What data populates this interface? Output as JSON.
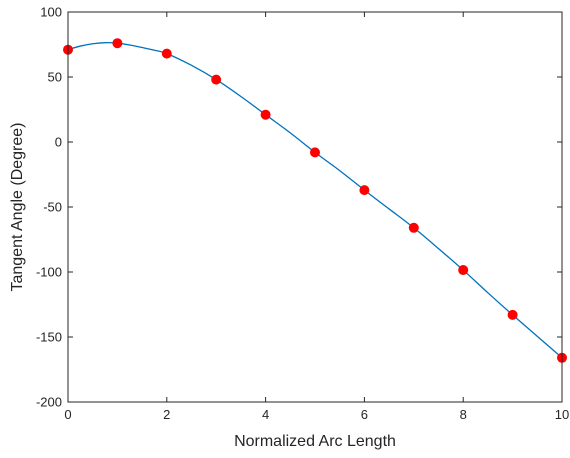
{
  "chart_data": {
    "type": "line",
    "title": "",
    "xlabel": "Normalized Arc Length",
    "ylabel": "Tangent Angle (Degree)",
    "xlim": [
      0,
      10
    ],
    "ylim": [
      -200,
      100
    ],
    "xticks": [
      0,
      2,
      4,
      6,
      8,
      10
    ],
    "yticks": [
      100,
      50,
      0,
      -50,
      -100,
      -150,
      -200
    ],
    "grid": false,
    "legend": "none",
    "series": [
      {
        "kind": "line",
        "color": "#0072BD",
        "x": [
          0,
          0.25,
          0.5,
          0.75,
          1,
          1.25,
          1.5,
          1.75,
          2,
          2.5,
          3,
          3.5,
          4,
          4.5,
          5,
          5.5,
          6,
          6.5,
          7,
          7.5,
          8,
          8.5,
          9,
          9.5,
          10
        ],
        "y": [
          71,
          73.8,
          75.6,
          76.4,
          76,
          74.6,
          72.7,
          70.6,
          68,
          59,
          48,
          35,
          21,
          7,
          -8,
          -22,
          -37,
          -51.5,
          -66,
          -82,
          -98.5,
          -116,
          -133,
          -149.5,
          -166
        ]
      },
      {
        "kind": "markers",
        "color": "#FF0000",
        "x": [
          0,
          1,
          2,
          3,
          4,
          5,
          6,
          7,
          8,
          9,
          10
        ],
        "y": [
          71,
          76,
          68,
          48,
          21,
          -8,
          -37,
          -66,
          -98.5,
          -133,
          -166
        ]
      }
    ]
  }
}
